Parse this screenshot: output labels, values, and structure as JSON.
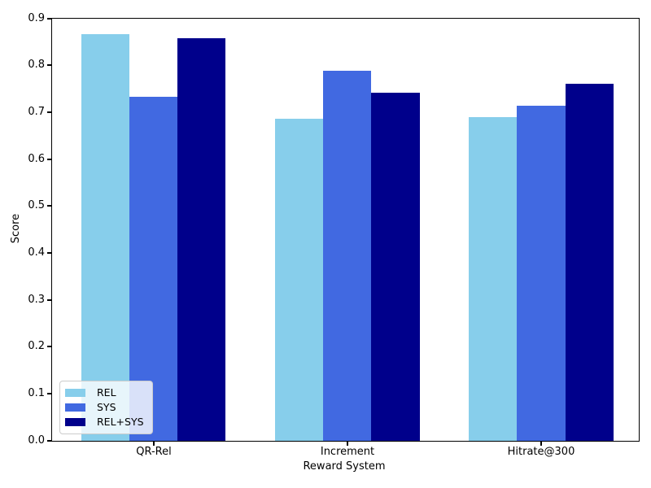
{
  "chart_data": {
    "type": "bar",
    "title": "",
    "xlabel": "Reward System",
    "ylabel": "Score",
    "categories": [
      "QR-Rel",
      "Increment",
      "Hitrate@300"
    ],
    "series": [
      {
        "name": "REL",
        "color": "#87CEEB",
        "values": [
          0.867,
          0.687,
          0.691
        ]
      },
      {
        "name": "SYS",
        "color": "#4169E1",
        "values": [
          0.733,
          0.789,
          0.715
        ]
      },
      {
        "name": "REL+SYS",
        "color": "#00008B",
        "values": [
          0.858,
          0.743,
          0.761
        ]
      }
    ],
    "ylim": [
      0.0,
      0.9
    ],
    "ytick_values": [
      0.0,
      0.1,
      0.2,
      0.3,
      0.4,
      0.5,
      0.6,
      0.7,
      0.8,
      0.9
    ],
    "ytick_labels": [
      "0.0",
      "0.1",
      "0.2",
      "0.3",
      "0.4",
      "0.5",
      "0.6",
      "0.7",
      "0.8",
      "0.9"
    ],
    "grid": false,
    "legend_position": "lower left",
    "axis_color": "#000000",
    "text_color": "#000000",
    "background_color": "#ffffff"
  }
}
